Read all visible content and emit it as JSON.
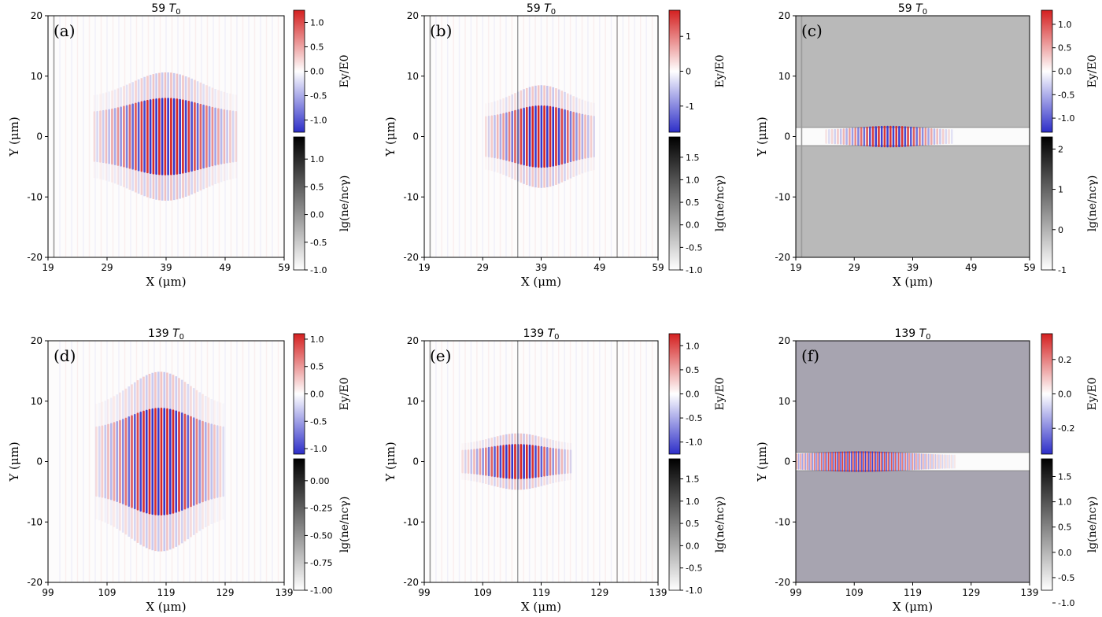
{
  "figure": {
    "colors": {
      "ey_negative": "#2d2ec8",
      "ey_zero": "#ffffff",
      "ey_positive": "#d42020",
      "density_low": "#ffffff",
      "density_high": "#000000",
      "frame": "#000000"
    }
  },
  "chart_data": [
    {
      "type": "heatmap",
      "panel_label": "(a)",
      "title": "59 T0",
      "title_number": "59",
      "title_unit": "T",
      "title_sub": "0",
      "xlabel": "X (μm)",
      "ylabel": "Y (μm)",
      "xlim": [
        19,
        59
      ],
      "ylim": [
        -20,
        20
      ],
      "xticks": [
        19,
        29,
        39,
        49,
        59
      ],
      "yticks": [
        -20,
        -10,
        0,
        10,
        20
      ],
      "field": {
        "center_x": 39,
        "center_y": 0,
        "half_length_x": 9,
        "half_width_y": 5,
        "peak": 1.0,
        "spacing_um": 1.0
      },
      "ey_colorbar": {
        "label": "Ey/E0",
        "range": [
          -1.25,
          1.25
        ],
        "ticks": [
          "1.0",
          "0.5",
          "0.0",
          "-0.5",
          "-1.0"
        ],
        "tick_values": [
          1.0,
          0.5,
          0.0,
          -0.5,
          -1.0
        ]
      },
      "density_colorbar": {
        "label": "lg(ne/ncγ)",
        "range": [
          -1.0,
          1.4
        ],
        "ticks": [
          "1.0",
          "0.5",
          "0.0",
          "-0.5",
          "-1.0"
        ],
        "tick_values": [
          1.0,
          0.5,
          0.0,
          -0.5,
          -1.0
        ]
      },
      "features": {
        "wall_x": [
          20.0
        ],
        "channel": null,
        "bulk_density": false
      }
    },
    {
      "type": "heatmap",
      "panel_label": "(b)",
      "title": "59 T0",
      "title_number": "59",
      "title_unit": "T",
      "title_sub": "0",
      "xlabel": "X (μm)",
      "ylabel": "Y (μm)",
      "xlim": [
        19,
        59
      ],
      "ylim": [
        -20,
        20
      ],
      "xticks": [
        19,
        29,
        39,
        49,
        59
      ],
      "yticks": [
        -20,
        -10,
        0,
        10,
        20
      ],
      "field": {
        "center_x": 39,
        "center_y": 0,
        "half_length_x": 7,
        "half_width_y": 4,
        "peak": 1.2,
        "spacing_um": 1.0
      },
      "ey_colorbar": {
        "label": "Ey/E0",
        "range": [
          -1.75,
          1.75
        ],
        "ticks": [
          "1",
          "0",
          "-1"
        ],
        "tick_values": [
          1,
          0,
          -1
        ]
      },
      "density_colorbar": {
        "label": "lg(ne/ncγ)",
        "range": [
          -1.0,
          1.95
        ],
        "ticks": [
          "1.5",
          "1.0",
          "0.5",
          "0.0",
          "-0.5",
          "-1.0"
        ],
        "tick_values": [
          1.5,
          1.0,
          0.5,
          0.0,
          -0.5,
          -1.0
        ]
      },
      "features": {
        "wall_x": [
          20.0,
          35.0,
          52.0
        ],
        "channel": null,
        "bulk_density": false
      }
    },
    {
      "type": "heatmap",
      "panel_label": "(c)",
      "title": "59 T0",
      "title_number": "59",
      "title_unit": "T",
      "title_sub": "0",
      "xlabel": "X (μm)",
      "ylabel": "Y (μm)",
      "xlim": [
        19,
        59
      ],
      "ylim": [
        -20,
        20
      ],
      "xticks": [
        19,
        29,
        39,
        49,
        59
      ],
      "yticks": [
        -20,
        -10,
        0,
        10,
        20
      ],
      "field": {
        "center_x": 35,
        "center_y": 0,
        "half_length_x": 8,
        "half_width_y": 1.3,
        "peak": 1.0,
        "spacing_um": 1.0
      },
      "ey_colorbar": {
        "label": "Ey/E0",
        "range": [
          -1.3,
          1.3
        ],
        "ticks": [
          "1.0",
          "0.5",
          "0.0",
          "-0.5",
          "-1.0"
        ],
        "tick_values": [
          1.0,
          0.5,
          0.0,
          -0.5,
          -1.0
        ]
      },
      "density_colorbar": {
        "label": "lg(ne/ncγ)",
        "range": [
          -1.0,
          2.3
        ],
        "ticks": [
          "2",
          "1",
          "0",
          "-1"
        ],
        "tick_values": [
          2,
          1,
          0,
          -1
        ]
      },
      "features": {
        "wall_x": [
          20.0
        ],
        "channel": [
          -1.5,
          1.5
        ],
        "bulk_density": true,
        "bulk_color": "#b9b9b9"
      }
    },
    {
      "type": "heatmap",
      "panel_label": "(d)",
      "title": "139 T0",
      "title_number": "139",
      "title_unit": "T",
      "title_sub": "0",
      "xlabel": "X (μm)",
      "ylabel": "Y (μm)",
      "xlim": [
        99,
        139
      ],
      "ylim": [
        -20,
        20
      ],
      "xticks": [
        99,
        109,
        119,
        129,
        139
      ],
      "yticks": [
        -20,
        -10,
        0,
        10,
        20
      ],
      "field": {
        "center_x": 118,
        "center_y": 0,
        "half_length_x": 8,
        "half_width_y": 7,
        "peak": 1.0,
        "spacing_um": 1.0
      },
      "ey_colorbar": {
        "label": "Ey/E0",
        "range": [
          -1.1,
          1.1
        ],
        "ticks": [
          "1.0",
          "0.5",
          "0.0",
          "-0.5",
          "-1.0"
        ],
        "tick_values": [
          1.0,
          0.5,
          0.0,
          -0.5,
          -1.0
        ]
      },
      "density_colorbar": {
        "label": "lg(ne/ncγ)",
        "range": [
          -1.0,
          0.2
        ],
        "ticks": [
          "0.00",
          "-0.25",
          "-0.50",
          "-0.75",
          "-1.00"
        ],
        "tick_values": [
          0.0,
          -0.25,
          -0.5,
          -0.75,
          -1.0
        ]
      },
      "features": {
        "wall_x": [],
        "channel": null,
        "bulk_density": false
      }
    },
    {
      "type": "heatmap",
      "panel_label": "(e)",
      "title": "139 T0",
      "title_number": "139",
      "title_unit": "T",
      "title_sub": "0",
      "xlabel": "X (μm)",
      "ylabel": "Y (μm)",
      "xlim": [
        99,
        139
      ],
      "ylim": [
        -20,
        20
      ],
      "xticks": [
        99,
        109,
        119,
        129,
        139
      ],
      "yticks": [
        -20,
        -10,
        0,
        10,
        20
      ],
      "field": {
        "center_x": 115,
        "center_y": 0,
        "half_length_x": 7,
        "half_width_y": 2.2,
        "peak": 1.1,
        "spacing_um": 1.0
      },
      "ey_colorbar": {
        "label": "Ey/E0",
        "range": [
          -1.25,
          1.25
        ],
        "ticks": [
          "1.0",
          "0.5",
          "0.0",
          "-0.5",
          "-1.0"
        ],
        "tick_values": [
          1.0,
          0.5,
          0.0,
          -0.5,
          -1.0
        ]
      },
      "density_colorbar": {
        "label": "lg(ne/ncγ)",
        "range": [
          -1.0,
          1.95
        ],
        "ticks": [
          "1.5",
          "1.0",
          "0.5",
          "0.0",
          "-0.5",
          "-1.0"
        ],
        "tick_values": [
          1.5,
          1.0,
          0.5,
          0.0,
          -0.5,
          -1.0
        ]
      },
      "features": {
        "wall_x": [
          100.0,
          115.0,
          132.0
        ],
        "channel": null,
        "bulk_density": false
      }
    },
    {
      "type": "heatmap",
      "panel_label": "(f)",
      "title": "139 T0",
      "title_number": "139",
      "title_unit": "T",
      "title_sub": "0",
      "xlabel": "X (μm)",
      "ylabel": "Y (μm)",
      "xlim": [
        99,
        139
      ],
      "ylim": [
        -20,
        20
      ],
      "xticks": [
        99,
        109,
        119,
        129,
        139
      ],
      "yticks": [
        -20,
        -10,
        0,
        10,
        20
      ],
      "field": {
        "center_x": 110,
        "center_y": 0,
        "half_length_x": 12,
        "half_width_y": 1.3,
        "peak": 0.3,
        "spacing_um": 0.6
      },
      "ey_colorbar": {
        "label": "Ey/E0",
        "range": [
          -0.35,
          0.35
        ],
        "ticks": [
          "0.2",
          "0.0",
          "-0.2"
        ],
        "tick_values": [
          0.2,
          0.0,
          -0.2
        ]
      },
      "density_colorbar": {
        "label": "lg(ne/ncγ)",
        "range": [
          -0.75,
          1.85
        ],
        "ticks": [
          "1.5",
          "1.0",
          "0.5",
          "0.0",
          "-0.5",
          "-1.0"
        ],
        "tick_values": [
          1.5,
          1.0,
          0.5,
          0.0,
          -0.5,
          -1.0
        ]
      },
      "features": {
        "wall_x": [],
        "channel": [
          -1.5,
          1.5
        ],
        "bulk_density": true,
        "bulk_color": "#a7a4b0"
      }
    }
  ]
}
